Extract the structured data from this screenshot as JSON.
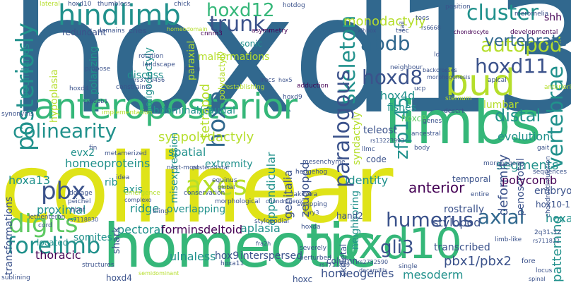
{
  "colors": {
    "background": "#ffffff",
    "dark_purple": "#440154",
    "indigo": "#3b528b",
    "blue": "#31688e",
    "teal": "#21918c",
    "green": "#35b779",
    "light_green": "#5ec962",
    "yellow_green": "#b5de2b",
    "yellow": "#dfe318"
  },
  "words": [
    {
      "id": "hoxd13",
      "text": "hoxd13"
    },
    {
      "id": "collinear",
      "text": "collinear"
    },
    {
      "id": "homeotic",
      "text": "homeotic"
    },
    {
      "id": "limbs",
      "text": "limbs"
    },
    {
      "id": "anteroposterior",
      "text": "anteroposterior"
    },
    {
      "id": "hoxd10",
      "text": "hoxd10"
    },
    {
      "id": "hindlimb",
      "text": "hindlimb"
    },
    {
      "id": "bud",
      "text": "bud"
    },
    {
      "id": "posteriorly",
      "text": "posteriorly"
    },
    {
      "id": "digits",
      "text": "digits"
    },
    {
      "id": "forelimb",
      "text": "forelimb"
    },
    {
      "id": "colinearity",
      "text": "colinearity"
    },
    {
      "id": "pbx",
      "text": "pbx"
    },
    {
      "id": "axes",
      "text": "axes"
    },
    {
      "id": "hoxa",
      "text": "hoxa"
    },
    {
      "id": "trunk",
      "text": "trunk"
    },
    {
      "id": "hoxd12",
      "text": "hoxd12"
    },
    {
      "id": "cluster",
      "text": "cluster"
    },
    {
      "id": "abdb",
      "text": "abdb"
    },
    {
      "id": "autopod",
      "text": "autopod"
    },
    {
      "id": "hoxd11",
      "text": "hoxd11"
    },
    {
      "id": "hoxd8",
      "text": "hoxd8"
    },
    {
      "id": "skeleton",
      "text": "skeleton"
    },
    {
      "id": "paralogous",
      "text": "paralogous"
    },
    {
      "id": "vertebrae",
      "text": "vertebrae"
    },
    {
      "id": "vertebrate",
      "text": "vertebrate"
    },
    {
      "id": "humerus",
      "text": "humerus"
    },
    {
      "id": "axial",
      "text": "axial"
    },
    {
      "id": "zfp145",
      "text": "zfp145"
    },
    {
      "id": "distal",
      "text": "distal"
    },
    {
      "id": "monodactyly",
      "text": "monodactyly"
    },
    {
      "id": "shh",
      "text": "shh"
    },
    {
      "id": "hox4d",
      "text": "hox4d"
    },
    {
      "id": "fishes",
      "text": "fishes"
    },
    {
      "id": "lumbar",
      "text": "lumbar"
    },
    {
      "id": "evolution",
      "text": "evolution"
    },
    {
      "id": "hoxc9",
      "text": "hoxc9"
    },
    {
      "id": "teleost",
      "text": "teleost"
    },
    {
      "id": "segments",
      "text": "segments"
    },
    {
      "id": "tetrapod",
      "text": "tetrapod"
    },
    {
      "id": "synpolydactyly",
      "text": "synpolydactyly"
    },
    {
      "id": "spatial",
      "text": "spatial"
    },
    {
      "id": "extremity",
      "text": "extremity"
    },
    {
      "id": "homeoproteins",
      "text": "homeoproteins"
    },
    {
      "id": "hoxa13",
      "text": "hoxa13"
    },
    {
      "id": "appendicular",
      "text": "appendicular"
    },
    {
      "id": "genitalia",
      "text": "genitalia"
    },
    {
      "id": "zeugopod",
      "text": "zeugopod"
    },
    {
      "id": "anterior",
      "text": "anterior"
    },
    {
      "id": "identity",
      "text": "identity"
    },
    {
      "id": "deformity",
      "text": "deformity"
    },
    {
      "id": "penoscrotal",
      "text": "penoscrotal"
    },
    {
      "id": "polycomb",
      "text": "polycomb"
    },
    {
      "id": "hoxa9",
      "text": "hoxa9"
    },
    {
      "id": "embryos",
      "text": "embryos"
    },
    {
      "id": "hox10_11",
      "text": "hox10-11"
    },
    {
      "id": "stylopod",
      "text": "stylopod"
    },
    {
      "id": "gli3",
      "text": "gli3"
    },
    {
      "id": "patterning",
      "text": "patterning"
    },
    {
      "id": "pbx1_pbx2",
      "text": "pbx1/pbx2"
    },
    {
      "id": "mesoderm",
      "text": "mesoderm"
    },
    {
      "id": "homeogenes",
      "text": "homeogenes"
    },
    {
      "id": "transcribed",
      "text": "transcribed"
    },
    {
      "id": "column",
      "text": "column"
    },
    {
      "id": "neighboring",
      "text": "neighboring"
    },
    {
      "id": "hand2",
      "text": "hand2"
    },
    {
      "id": "rostrally",
      "text": "rostrally"
    },
    {
      "id": "pectoral",
      "text": "pectoral"
    },
    {
      "id": "formins",
      "text": "formins"
    },
    {
      "id": "deltoid",
      "text": "deltoid"
    },
    {
      "id": "aplasia",
      "text": "aplasia"
    },
    {
      "id": "ulnaless",
      "text": "ulnaless"
    },
    {
      "id": "hox9",
      "text": "hox9"
    },
    {
      "id": "interspersed",
      "text": "interspersed"
    },
    {
      "id": "thoracic",
      "text": "thoracic"
    },
    {
      "id": "somites",
      "text": "somites"
    },
    {
      "id": "located",
      "text": "located"
    },
    {
      "id": "proximal",
      "text": "proximal"
    },
    {
      "id": "rib",
      "text": "rib"
    },
    {
      "id": "axis",
      "text": "axis"
    },
    {
      "id": "ridge",
      "text": "ridge"
    },
    {
      "id": "overlapping",
      "text": "overlapping"
    },
    {
      "id": "misexpression",
      "text": "misexpression"
    },
    {
      "id": "oligodactyly",
      "text": "oligodactyly"
    },
    {
      "id": "abdominal_caudal",
      "text": "abdominal/caudal"
    },
    {
      "id": "polarizing",
      "text": "polarizing"
    },
    {
      "id": "discuss",
      "text": "discuss"
    },
    {
      "id": "hypoplasia",
      "text": "hypoplasia"
    },
    {
      "id": "boundaries",
      "text": "boundaries"
    },
    {
      "id": "redundant",
      "text": "redundant"
    },
    {
      "id": "sonic",
      "text": "sonic"
    },
    {
      "id": "paraxial",
      "text": "paraxial"
    },
    {
      "id": "malformations",
      "text": "malformations"
    },
    {
      "id": "polydactyly",
      "text": "polydactyly"
    },
    {
      "id": "syndactyly",
      "text": "syndactyly"
    },
    {
      "id": "evx2",
      "text": "evx2"
    },
    {
      "id": "transformations",
      "text": "transformations"
    },
    {
      "id": "shark",
      "text": "shark"
    },
    {
      "id": "hoxd4",
      "text": "hoxd4"
    },
    {
      "id": "hoxc",
      "text": "hoxc"
    },
    {
      "id": "code",
      "text": "code"
    },
    {
      "id": "temporal",
      "text": "temporal"
    },
    {
      "id": "skeletal",
      "text": "skeletal"
    },
    {
      "id": "fore",
      "text": "fore"
    },
    {
      "id": "lateral",
      "text": "lateral"
    },
    {
      "id": "hoxd10_small",
      "text": "hoxd10"
    },
    {
      "id": "thumbless",
      "text": "thumbless"
    },
    {
      "id": "chick",
      "text": "chick"
    },
    {
      "id": "hotdog",
      "text": "hotdog"
    },
    {
      "id": "position",
      "text": "position"
    },
    {
      "id": "meromelia",
      "text": "meromelia"
    },
    {
      "id": "xlhbox",
      "text": "xlhbox"
    },
    {
      "id": "toes",
      "text": "toes"
    },
    {
      "id": "tail",
      "text": "tail"
    },
    {
      "id": "domains",
      "text": "domains"
    },
    {
      "id": "cnes",
      "text": "cnes"
    },
    {
      "id": "homeodomain",
      "text": "homeodomain"
    },
    {
      "id": "cnnm3",
      "text": "cnnm3"
    },
    {
      "id": "asymmetry",
      "text": "asymmetry"
    },
    {
      "id": "tsec",
      "text": "tsec"
    },
    {
      "id": "rs6668",
      "text": "rs6668"
    },
    {
      "id": "chondrocyte",
      "text": "chondrocyte"
    },
    {
      "id": "developmental",
      "text": "developmental"
    },
    {
      "id": "rotation",
      "text": "rotation"
    },
    {
      "id": "landscape",
      "text": "landscape"
    },
    {
      "id": "rs3779456",
      "text": "rs3779456"
    },
    {
      "id": "fra2g",
      "text": "fra2g"
    },
    {
      "id": "irecs",
      "text": "irecs"
    },
    {
      "id": "adduction",
      "text": "adduction"
    },
    {
      "id": "establishing",
      "text": "establishing"
    },
    {
      "id": "constraints",
      "text": "constraints"
    },
    {
      "id": "cyp26b1",
      "text": "cyp26b1"
    },
    {
      "id": "hoxd4_small",
      "text": "hoxd4"
    },
    {
      "id": "rs13223993",
      "text": "rs13223993"
    },
    {
      "id": "llmc",
      "text": "llmc"
    },
    {
      "id": "ancestral",
      "text": "ancestral"
    },
    {
      "id": "body",
      "text": "body"
    },
    {
      "id": "desert",
      "text": "desert"
    },
    {
      "id": "apical",
      "text": "apical"
    },
    {
      "id": "sternum",
      "text": "sternum"
    },
    {
      "id": "gait",
      "text": "gait"
    },
    {
      "id": "fin",
      "text": "fin"
    },
    {
      "id": "metamerized",
      "text": "metamerized"
    },
    {
      "id": "next_most",
      "text": "next-most"
    },
    {
      "id": "mesenchyme",
      "text": "mesenchyme"
    },
    {
      "id": "hedgehog",
      "text": "hedgehog"
    },
    {
      "id": "equinus",
      "text": "equinus"
    },
    {
      "id": "idea",
      "text": "idea"
    },
    {
      "id": "emergence",
      "text": "emergence"
    },
    {
      "id": "chondrogenic",
      "text": "chondrogenic"
    },
    {
      "id": "conservation",
      "text": "conservation"
    },
    {
      "id": "dosage",
      "text": "dosage"
    },
    {
      "id": "peichel",
      "text": "peichel"
    },
    {
      "id": "hbnf",
      "text": "hbnf"
    },
    {
      "id": "tiling",
      "text": "tiling"
    },
    {
      "id": "lethenteron",
      "text": "lethenteron"
    },
    {
      "id": "cord",
      "text": "cord"
    },
    {
      "id": "takihara",
      "text": "takihara"
    },
    {
      "id": "swapping",
      "text": "swapping"
    },
    {
      "id": "rury3",
      "text": "rury3"
    },
    {
      "id": "rs7118830",
      "text": "rs7118830"
    },
    {
      "id": "complexo",
      "text": "complexo"
    },
    {
      "id": "fra2h",
      "text": "fra2h"
    },
    {
      "id": "severely",
      "text": "severely"
    },
    {
      "id": "perturbed",
      "text": "perturbed"
    },
    {
      "id": "rs7711819",
      "text": "rs7711819"
    },
    {
      "id": "structures",
      "text": "structures"
    },
    {
      "id": "hoxa11",
      "text": "hoxa11"
    },
    {
      "id": "rs2752590",
      "text": "rs2752590"
    },
    {
      "id": "sublining",
      "text": "sublining"
    },
    {
      "id": "hox5",
      "text": "hox5"
    },
    {
      "id": "single",
      "text": "single"
    },
    {
      "id": "locus",
      "text": "locus"
    },
    {
      "id": "spinal",
      "text": "spinal"
    },
    {
      "id": "rs711822",
      "text": "rs711822"
    },
    {
      "id": "2q31_32",
      "text": "2q31-32"
    },
    {
      "id": "sequences",
      "text": "sequences"
    },
    {
      "id": "chondrostimulation",
      "text": "chondrostimulation"
    },
    {
      "id": "entire",
      "text": "entire"
    },
    {
      "id": "neighbour",
      "text": "neighbour"
    },
    {
      "id": "backcrosses",
      "text": "backcrosses"
    },
    {
      "id": "hoxd9",
      "text": "hoxd9"
    },
    {
      "id": "implementation",
      "text": "implementation"
    },
    {
      "id": "propose",
      "text": "propose"
    },
    {
      "id": "morphogenesis",
      "text": "morphogenesis"
    },
    {
      "id": "genes",
      "text": "genes"
    },
    {
      "id": "ucp",
      "text": "ucp"
    },
    {
      "id": "sternum_b",
      "text": "synonyms"
    },
    {
      "id": "morphogen",
      "text": "morphogen"
    },
    {
      "id": "stylopodial",
      "text": "stylopodial"
    },
    {
      "id": "morphological",
      "text": "morphological"
    },
    {
      "id": "global",
      "text": "global"
    },
    {
      "id": "posteroidistal",
      "text": "posterodistal"
    },
    {
      "id": "anteriorization",
      "text": "anteriorization"
    },
    {
      "id": "hoxda",
      "text": "hoxda"
    },
    {
      "id": "limblike",
      "text": "limb-like"
    },
    {
      "id": "decamillis",
      "text": "decamillis"
    },
    {
      "id": "semidominant",
      "text": "semidominant"
    },
    {
      "id": "ld",
      "text": "ld"
    }
  ]
}
